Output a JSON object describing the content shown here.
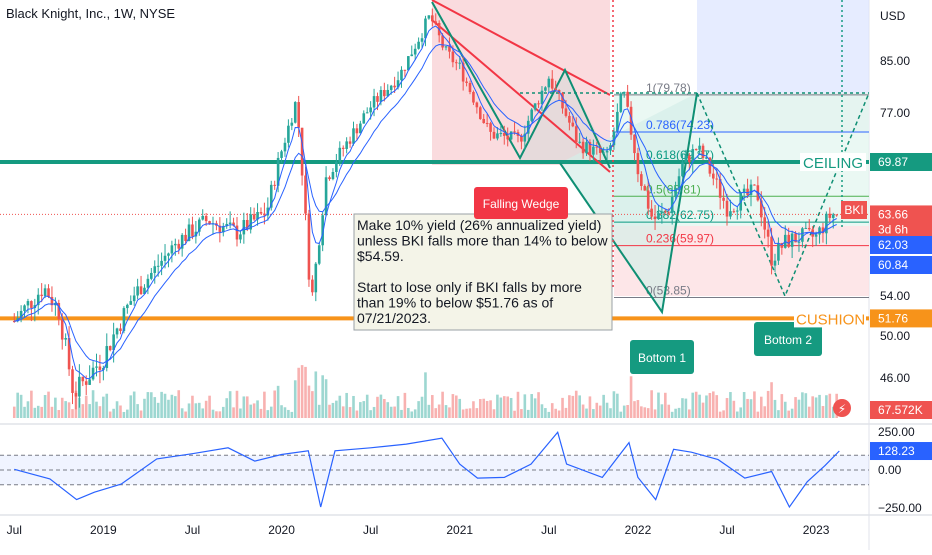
{
  "header": {
    "title": "Black Knight, Inc., 1W, NYSE"
  },
  "colors": {
    "up": "#26a69a",
    "down": "#ef5350",
    "ceiling": "#159a80",
    "cushion": "#f7931a",
    "ema": "#2962ff",
    "rsi": "#2962ff",
    "wedge": "#f23645",
    "projection": "#0f8f74"
  },
  "chart_data": [
    {
      "type": "candlestick",
      "title": "Black Knight, Inc., 1W, NYSE",
      "y_axis_label": "USD",
      "x_ticks": [
        "Jul",
        "2019",
        "Jul",
        "2020",
        "Jul",
        "2021",
        "Jul",
        "2022",
        "Jul",
        "2023"
      ],
      "y_ticks": [
        "85.00",
        "77.00",
        "54.00",
        "50.00",
        "46.00"
      ],
      "ylim": [
        43,
        97
      ],
      "close_path": [
        [
          "2018-07",
          51.5
        ],
        [
          "2018-09",
          55.0
        ],
        [
          "2018-10",
          52.5
        ],
        [
          "2018-11",
          44.5
        ],
        [
          "2019-01",
          48.0
        ],
        [
          "2019-03",
          54.0
        ],
        [
          "2019-06",
          60.5
        ],
        [
          "2019-08",
          63.0
        ],
        [
          "2019-10",
          61.5
        ],
        [
          "2019-12",
          64.0
        ],
        [
          "2020-02",
          79.0
        ],
        [
          "2020-03",
          53.0
        ],
        [
          "2020-04",
          68.0
        ],
        [
          "2020-07",
          78.0
        ],
        [
          "2020-09",
          83.0
        ],
        [
          "2020-11",
          92.0
        ],
        [
          "2020-12",
          86.5
        ],
        [
          "2021-01",
          84.0
        ],
        [
          "2021-02",
          79.0
        ],
        [
          "2021-03",
          74.0
        ],
        [
          "2021-05",
          73.0
        ],
        [
          "2021-07",
          82.5
        ],
        [
          "2021-09",
          72.5
        ],
        [
          "2021-11",
          70.5
        ],
        [
          "2021-12",
          80.5
        ],
        [
          "2022-01",
          69.0
        ],
        [
          "2022-02",
          63.0
        ],
        [
          "2022-03",
          64.0
        ],
        [
          "2022-04",
          69.5
        ],
        [
          "2022-05",
          72.0
        ],
        [
          "2022-07",
          64.5
        ],
        [
          "2022-09",
          66.5
        ],
        [
          "2022-10",
          58.5
        ],
        [
          "2022-11",
          60.5
        ],
        [
          "2022-12",
          61.0
        ],
        [
          "2023-01",
          61.0
        ],
        [
          "2023-02",
          63.66
        ]
      ],
      "price_labels": {
        "ceiling": "69.87",
        "last": "63.66",
        "countdown": "3d 6h",
        "ema_fast": "62.03",
        "ema_slow": "60.84",
        "cushion": "51.76",
        "volume": "67.572K",
        "symbol": "BKI"
      },
      "levels": {
        "ceiling": 69.87,
        "cushion": 51.76
      },
      "fib_levels": [
        {
          "label": "1(79.78)",
          "value": 79.78
        },
        {
          "label": "0.786(74.23)",
          "value": 74.23
        },
        {
          "label": "0.618(69.87)",
          "value": 69.87
        },
        {
          "label": "0.5(65.81)",
          "value": 65.81
        },
        {
          "label": "0.382(62.75)",
          "value": 62.75
        },
        {
          "label": "0.236(59.97)",
          "value": 59.97
        },
        {
          "label": "0(53.85)",
          "value": 53.85
        }
      ],
      "annotations": {
        "ceiling": "CEILING",
        "cushion": "CUSHION",
        "falling_wedge": "Falling Wedge",
        "bottom1": "Bottom 1",
        "bottom2": "Bottom 2",
        "note_lines": [
          "Make 10% yield (26% annualized yield)",
          "unless BKI falls more than 14% to below",
          "$54.59.",
          "",
          "Start to lose only if BKI falls by more",
          "than 19% to below $51.76 as of",
          "07/21/2023."
        ]
      }
    },
    {
      "type": "line",
      "series": [
        {
          "values": [
            [
              2018.5,
              5
            ],
            [
              2018.7,
              -60
            ],
            [
              2018.85,
              -200
            ],
            [
              2018.95,
              -150
            ],
            [
              2019.1,
              -95
            ],
            [
              2019.3,
              75
            ],
            [
              2019.5,
              110
            ],
            [
              2019.7,
              150
            ],
            [
              2019.85,
              60
            ],
            [
              2020.0,
              105
            ],
            [
              2020.15,
              130
            ],
            [
              2020.22,
              -250
            ],
            [
              2020.3,
              130
            ],
            [
              2020.5,
              150
            ],
            [
              2020.7,
              175
            ],
            [
              2020.9,
              215
            ],
            [
              2021.0,
              40
            ],
            [
              2021.1,
              -55
            ],
            [
              2021.25,
              -50
            ],
            [
              2021.4,
              40
            ],
            [
              2021.55,
              255
            ],
            [
              2021.6,
              40
            ],
            [
              2021.8,
              -50
            ],
            [
              2021.95,
              185
            ],
            [
              2022.0,
              -50
            ],
            [
              2022.1,
              -200
            ],
            [
              2022.2,
              140
            ],
            [
              2022.3,
              120
            ],
            [
              2022.45,
              70
            ],
            [
              2022.6,
              -55
            ],
            [
              2022.75,
              -10
            ],
            [
              2022.85,
              -250
            ],
            [
              2022.95,
              -80
            ],
            [
              2023.05,
              30
            ],
            [
              2023.13,
              128.23
            ]
          ]
        }
      ],
      "y_ticks": [
        "250.00",
        "0.00",
        "−250.00"
      ],
      "last_value": "128.23",
      "ylim": [
        -300,
        300
      ]
    }
  ]
}
